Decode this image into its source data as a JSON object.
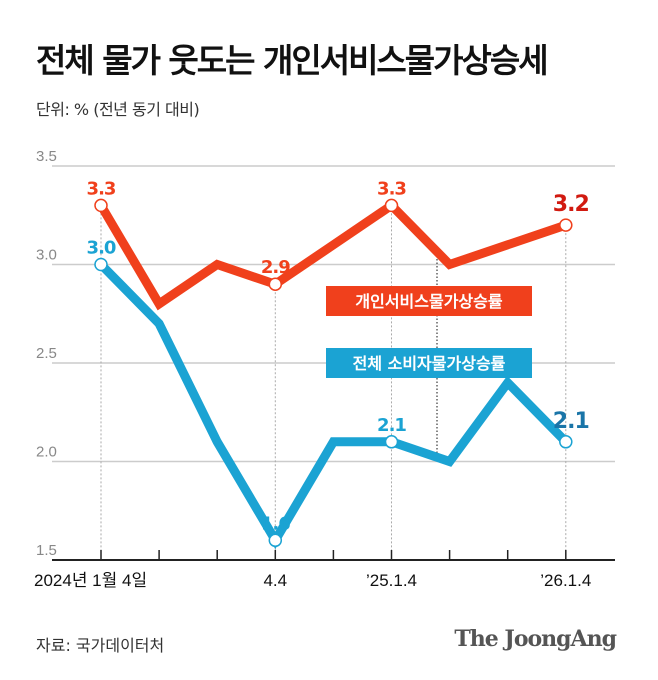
{
  "title": "전체 물가 웃도는 개인서비스물가상승세",
  "unit_label": "단위: % (전년 동기 대비)",
  "source": "자료: 국가데이터처",
  "logo": "The JoongAng",
  "colors": {
    "service": "#f0401c",
    "total": "#1ba3d3",
    "grid": "#cccccc",
    "axis": "#222222"
  },
  "chart_data": {
    "type": "line",
    "title": "전체 물가 웃도는 개인서비스물가상승세",
    "ylabel": "단위: % (전년 동기 대비)",
    "ylim": [
      1.5,
      3.5
    ],
    "yticks": [
      "3.5",
      "3.0",
      "2.5",
      "2.0",
      "1.5"
    ],
    "ytick_values": [
      3.5,
      3.0,
      2.5,
      2.0,
      1.5
    ],
    "xtick_labels": [
      "2024년 1월 4일",
      "",
      "",
      "4.4",
      "",
      "’25.1.4",
      "",
      "",
      "’26.1.4"
    ],
    "grid": true,
    "series": [
      {
        "name": "개인서비스물가상승률",
        "color": "#f0401c",
        "values": [
          3.3,
          2.8,
          3.0,
          2.9,
          3.1,
          3.3,
          3.0,
          3.1,
          3.2
        ],
        "labels": {
          "0": "3.3",
          "3": "2.9",
          "5": "3.3",
          "8": "3.2"
        }
      },
      {
        "name": "전체 소비자물가상승률",
        "color": "#1ba3d3",
        "values": [
          3.0,
          2.7,
          2.1,
          1.6,
          2.1,
          2.1,
          2.0,
          2.4,
          2.1
        ],
        "labels": {
          "0": "3.0",
          "3": "1.6",
          "5": "2.1",
          "8": "2.1"
        }
      }
    ]
  }
}
